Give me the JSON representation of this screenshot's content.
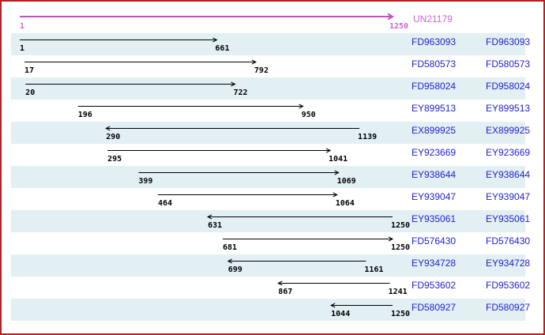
{
  "consensus": {
    "label": "UN21179",
    "start": 1,
    "end": 1250,
    "start_label": "1",
    "end_label": "1250"
  },
  "est_rows": [
    {
      "acc": "FD963093",
      "start": 1,
      "end": 661,
      "start_label": "1",
      "end_label": "661",
      "dir": "right"
    },
    {
      "acc": "FD580573",
      "start": 17,
      "end": 792,
      "start_label": "17",
      "end_label": "792",
      "dir": "right"
    },
    {
      "acc": "FD958024",
      "start": 20,
      "end": 722,
      "start_label": "20",
      "end_label": "722",
      "dir": "right"
    },
    {
      "acc": "EY899513",
      "start": 196,
      "end": 950,
      "start_label": "196",
      "end_label": "950",
      "dir": "right"
    },
    {
      "acc": "EX899925",
      "start": 290,
      "end": 1139,
      "start_label": "290",
      "end_label": "1139",
      "dir": "left"
    },
    {
      "acc": "EY923669",
      "start": 295,
      "end": 1041,
      "start_label": "295",
      "end_label": "1041",
      "dir": "right"
    },
    {
      "acc": "EY938644",
      "start": 399,
      "end": 1069,
      "start_label": "399",
      "end_label": "1069",
      "dir": "right"
    },
    {
      "acc": "EY939047",
      "start": 464,
      "end": 1064,
      "start_label": "464",
      "end_label": "1064",
      "dir": "right"
    },
    {
      "acc": "EY935061",
      "start": 631,
      "end": 1250,
      "start_label": "631",
      "end_label": "1250",
      "dir": "left"
    },
    {
      "acc": "FD576430",
      "start": 681,
      "end": 1250,
      "start_label": "681",
      "end_label": "1250",
      "dir": "right"
    },
    {
      "acc": "EY934728",
      "start": 699,
      "end": 1161,
      "start_label": "699",
      "end_label": "1161",
      "dir": "left"
    },
    {
      "acc": "FD953602",
      "start": 867,
      "end": 1241,
      "start_label": "867",
      "end_label": "1241",
      "dir": "left"
    },
    {
      "acc": "FD580927",
      "start": 1044,
      "end": 1250,
      "start_label": "1044",
      "end_label": "1250",
      "dir": "left"
    }
  ],
  "colors": {
    "border": "#b22222",
    "band": "#e2f0f4",
    "link": "#2222cc",
    "consensus_line": "#bb55bb",
    "consensus_text": "#cc66cc",
    "est_arrow": "#000000"
  },
  "chart_data": {
    "type": "table",
    "title": "UN21179",
    "x_range": [
      1,
      1250
    ],
    "columns": [
      "accession",
      "start",
      "end",
      "arrow_direction"
    ],
    "rows": [
      [
        "FD963093",
        1,
        661,
        "right"
      ],
      [
        "FD580573",
        17,
        792,
        "right"
      ],
      [
        "FD958024",
        20,
        722,
        "right"
      ],
      [
        "EY899513",
        196,
        950,
        "right"
      ],
      [
        "EX899925",
        290,
        1139,
        "left"
      ],
      [
        "EY923669",
        295,
        1041,
        "right"
      ],
      [
        "EY938644",
        399,
        1069,
        "right"
      ],
      [
        "EY939047",
        464,
        1064,
        "right"
      ],
      [
        "EY935061",
        631,
        1250,
        "left"
      ],
      [
        "FD576430",
        681,
        1250,
        "right"
      ],
      [
        "EY934728",
        699,
        1161,
        "left"
      ],
      [
        "FD953602",
        867,
        1241,
        "left"
      ],
      [
        "FD580927",
        1044,
        1250,
        "left"
      ]
    ]
  }
}
